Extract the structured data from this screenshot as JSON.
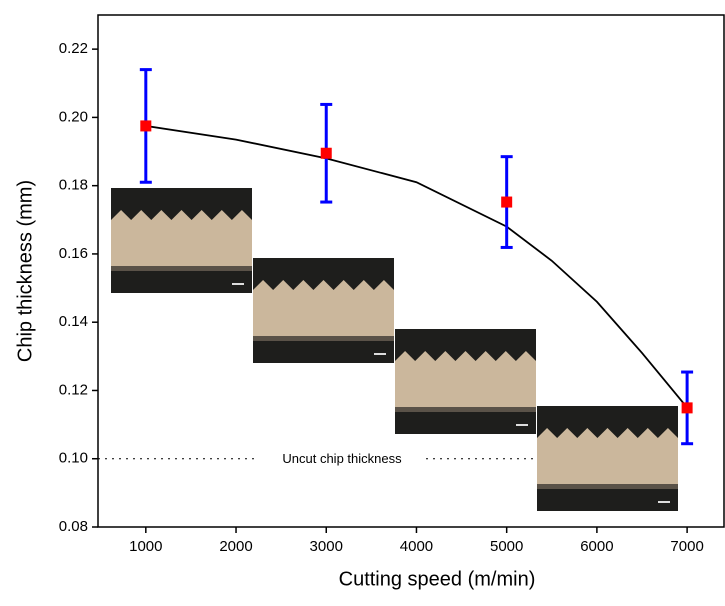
{
  "chart_data": {
    "type": "scatter",
    "xlabel": "Cutting speed (m/min)",
    "ylabel": "Chip thickness (mm)",
    "xlim": [
      470,
      7420
    ],
    "ylim": [
      0.08,
      0.23
    ],
    "xticks": [
      1000,
      2000,
      3000,
      4000,
      5000,
      6000,
      7000
    ],
    "yticks": [
      0.08,
      {
        "value": 0.1,
        "label": "0.10"
      },
      0.12,
      0.14,
      0.16,
      0.18,
      {
        "value": 0.2,
        "label": "0.20"
      },
      0.22
    ],
    "points": {
      "x": [
        1000,
        3000,
        5000,
        7000
      ],
      "values": [
        0.1975,
        0.1895,
        0.1752,
        0.1149
      ],
      "errors": [
        0.0165,
        0.0143,
        0.0133,
        0.0105
      ],
      "color": "#ff0000",
      "error_color": "#0000ff"
    },
    "curve": {
      "x": [
        1000,
        2000,
        3000,
        4000,
        5000,
        5500,
        6000,
        6500,
        7000
      ],
      "values": [
        0.1975,
        0.1935,
        0.188,
        0.181,
        0.168,
        0.158,
        0.146,
        0.131,
        0.115
      ],
      "color": "#000000"
    },
    "reference": {
      "value": 0.1,
      "label": "Uncut chip thickness"
    }
  }
}
